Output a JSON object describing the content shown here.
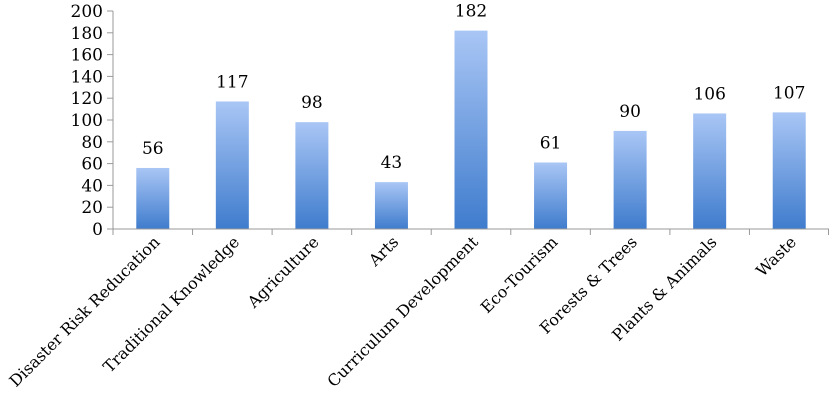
{
  "chart_data": {
    "type": "bar",
    "categories": [
      "Disaster Risk Reducation",
      "Traditional Knowledge",
      "Agriculture",
      "Arts",
      "Curriculum Development",
      "Eco-Tourism",
      "Forests & Trees",
      "Plants & Animals",
      "Waste"
    ],
    "values": [
      56,
      117,
      98,
      43,
      182,
      61,
      90,
      106,
      107
    ],
    "title": "",
    "xlabel": "",
    "ylabel": "",
    "ylim": [
      0,
      200
    ],
    "yticks": [
      0,
      20,
      40,
      60,
      80,
      100,
      120,
      140,
      160,
      180,
      200
    ],
    "grid": false,
    "data_labels": true,
    "colors": {
      "bar_top": "#a9c6f5",
      "bar_bottom": "#3f7ccd",
      "axis": "#999999"
    }
  }
}
